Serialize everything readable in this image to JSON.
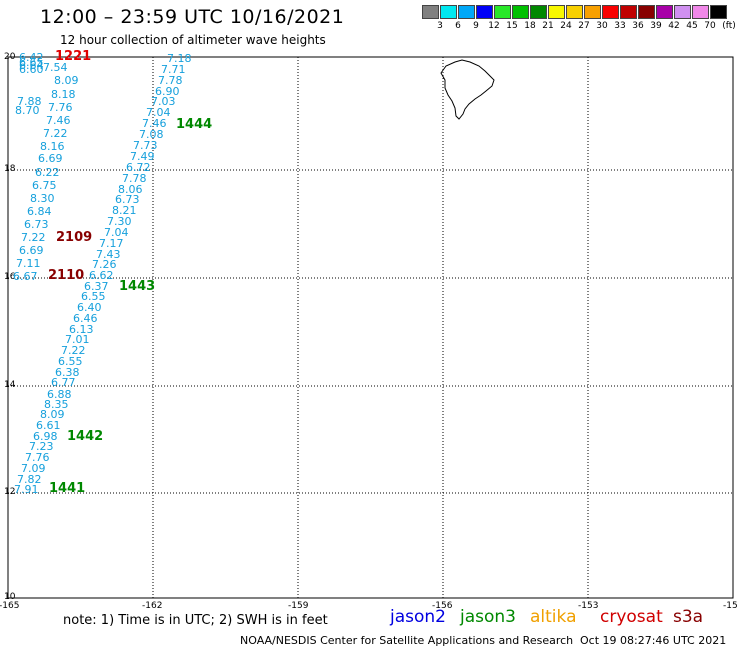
{
  "header": {
    "title": "12:00 – 23:59 UTC 10/16/2021",
    "subtitle": "12 hour collection of altimeter wave heights"
  },
  "legend": {
    "labels": [
      "3",
      "6",
      "9",
      "12",
      "15",
      "18",
      "21",
      "24",
      "27",
      "30",
      "33",
      "36",
      "39",
      "42",
      "45",
      "70"
    ],
    "unit": "(ft)",
    "colors": [
      "#808080",
      "#00e8f0",
      "#00a8f8",
      "#0000f8",
      "#28e828",
      "#00c000",
      "#008800",
      "#f8f800",
      "#f8d000",
      "#f8a000",
      "#f80000",
      "#c00000",
      "#880000",
      "#a800a8",
      "#d090f0",
      "#f088e8",
      "#000000"
    ]
  },
  "axes": {
    "lon_labels": [
      "-165",
      "-162",
      "-159",
      "-156",
      "-153",
      "-15"
    ],
    "lat_labels": [
      "20",
      "18",
      "16",
      "14",
      "12",
      "10"
    ]
  },
  "map": {
    "lon_range": [
      -165,
      -150
    ],
    "lat_range": [
      10,
      20
    ],
    "grid": true,
    "land": "island of Hawaii (Big Island), top right near -155.5, 19.5"
  },
  "tracks": {
    "values": [
      "6.42",
      "6.65",
      "6.64",
      "6.60",
      "7.54",
      "8.09",
      "8.18",
      "7.88",
      "7.76",
      "8.70",
      "7.46",
      "7.22",
      "8.16",
      "6.69",
      "6.22",
      "6.75",
      "8.30",
      "6.84",
      "6.73",
      "7.22",
      "6.69",
      "7.11",
      "6.67",
      "7.18",
      "7.71",
      "7.78",
      "6.90",
      "7.03",
      "7.04",
      "7.46",
      "7.08",
      "7.73",
      "7.49",
      "6.72",
      "7.78",
      "8.06",
      "6.73",
      "8.21",
      "7.30",
      "7.04",
      "7.17",
      "7.43",
      "7.26",
      "6.62",
      "6.37",
      "6.55",
      "6.40",
      "6.46",
      "6.13",
      "7.01",
      "7.22",
      "6.55",
      "6.38",
      "6.77",
      "6.88",
      "8.35",
      "8.09",
      "6.61",
      "6.98",
      "7.23",
      "7.76",
      "7.09",
      "7.82",
      "7.91"
    ],
    "passes": [
      {
        "label": "1221",
        "color": "#e00000"
      },
      {
        "label": "1444",
        "color": "#008800"
      },
      {
        "label": "2109",
        "color": "#880000"
      },
      {
        "label": "2110",
        "color": "#880000"
      },
      {
        "label": "1443",
        "color": "#008800"
      },
      {
        "label": "1442",
        "color": "#008800"
      },
      {
        "label": "1441",
        "color": "#008800"
      }
    ]
  },
  "footer": {
    "note": "note:  1) Time is in UTC;  2) SWH is in feet",
    "satellites": [
      {
        "name": "jason2",
        "color": "#0000e0"
      },
      {
        "name": "jason3",
        "color": "#008800"
      },
      {
        "name": "altika",
        "color": "#f0a000"
      },
      {
        "name": "cryosat",
        "color": "#d00000"
      },
      {
        "name": "s3a",
        "color": "#880000"
      }
    ],
    "credit": "NOAA/NESDIS Center for Satellite Applications and Research",
    "timestamp": "Oct 19 08:27:46 UTC 2021"
  }
}
